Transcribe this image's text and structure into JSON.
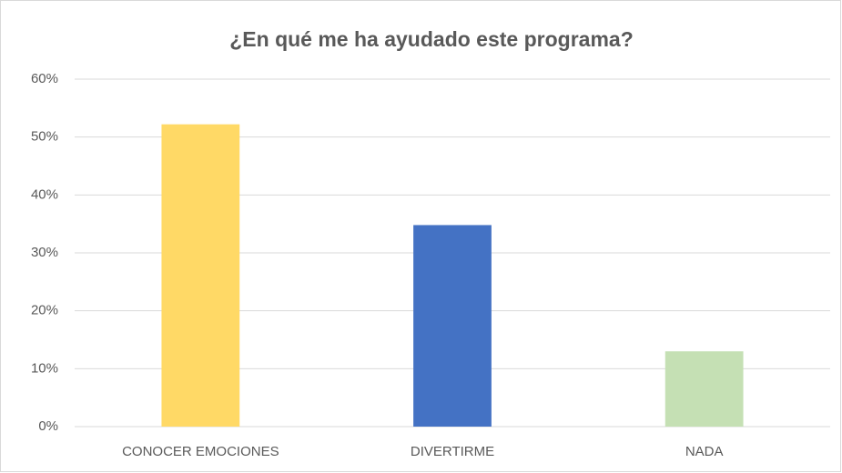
{
  "chart_data": {
    "type": "bar",
    "title": "¿En qué me ha ayudado este programa?",
    "categories": [
      "CONOCER EMOCIONES",
      "DIVERTIRME",
      "NADA"
    ],
    "values": [
      52.2,
      34.8,
      13.0
    ],
    "colors": [
      "#ffd966",
      "#4472c4",
      "#c5e0b4"
    ],
    "ylim": [
      0,
      60
    ],
    "yticks": [
      {
        "value": 0,
        "label": "0%"
      },
      {
        "value": 10,
        "label": "10%"
      },
      {
        "value": 20,
        "label": "20%"
      },
      {
        "value": 30,
        "label": "30%"
      },
      {
        "value": 40,
        "label": "40%"
      },
      {
        "value": 50,
        "label": "50%"
      },
      {
        "value": 60,
        "label": "60%"
      }
    ],
    "grid": true
  }
}
